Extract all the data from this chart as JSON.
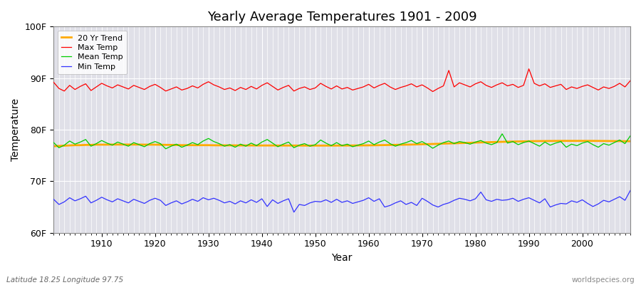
{
  "title": "Yearly Average Temperatures 1901 - 2009",
  "xlabel": "Year",
  "ylabel": "Temperature",
  "footnote_left": "Latitude 18.25 Longitude 97.75",
  "footnote_right": "worldspecies.org",
  "years_start": 1901,
  "years_end": 2009,
  "yticks": [
    60,
    70,
    80,
    90,
    100
  ],
  "ytick_labels": [
    "60F",
    "70F",
    "80F",
    "90F",
    "100F"
  ],
  "xticks": [
    1910,
    1920,
    1930,
    1940,
    1950,
    1960,
    1970,
    1980,
    1990,
    2000
  ],
  "xlim": [
    1901,
    2009
  ],
  "ylim": [
    60,
    100
  ],
  "fig_color": "#ffffff",
  "plot_bg_color": "#e0e0e8",
  "grid_color": "#ffffff",
  "max_temp_color": "#ff0000",
  "mean_temp_color": "#00cc00",
  "min_temp_color": "#3333ff",
  "trend_color": "#ffaa00",
  "legend_labels": [
    "Max Temp",
    "Mean Temp",
    "Min Temp",
    "20 Yr Trend"
  ],
  "max_temps": [
    89.2,
    88.0,
    87.5,
    88.6,
    87.8,
    88.4,
    88.9,
    87.6,
    88.3,
    89.0,
    88.5,
    88.1,
    88.7,
    88.3,
    87.9,
    88.6,
    88.2,
    87.8,
    88.4,
    88.8,
    88.2,
    87.5,
    87.9,
    88.3,
    87.7,
    88.0,
    88.5,
    88.1,
    88.8,
    89.3,
    88.7,
    88.3,
    87.8,
    88.1,
    87.6,
    88.2,
    87.8,
    88.4,
    87.9,
    88.6,
    89.1,
    88.4,
    87.7,
    88.2,
    88.6,
    87.5,
    88.0,
    88.3,
    87.8,
    88.1,
    89.0,
    88.4,
    87.9,
    88.5,
    87.9,
    88.2,
    87.7,
    88.0,
    88.3,
    88.8,
    88.1,
    88.6,
    89.0,
    88.3,
    87.8,
    88.2,
    88.5,
    88.9,
    88.3,
    88.7,
    88.1,
    87.4,
    88.0,
    88.5,
    91.5,
    88.3,
    89.1,
    88.7,
    88.3,
    88.9,
    89.3,
    88.6,
    88.2,
    88.7,
    89.1,
    88.5,
    88.8,
    88.2,
    88.6,
    91.8,
    89.0,
    88.5,
    88.9,
    88.2,
    88.5,
    88.8,
    87.8,
    88.3,
    88.0,
    88.4,
    88.7,
    88.2,
    87.7,
    88.3,
    88.0,
    88.4,
    89.0,
    88.3,
    89.5
  ],
  "mean_temps": [
    77.5,
    76.5,
    77.0,
    77.8,
    77.2,
    77.6,
    78.1,
    76.8,
    77.3,
    77.9,
    77.4,
    77.0,
    77.6,
    77.2,
    76.8,
    77.5,
    77.1,
    76.7,
    77.3,
    77.7,
    77.3,
    76.3,
    76.8,
    77.2,
    76.6,
    77.0,
    77.5,
    77.1,
    77.8,
    78.3,
    77.7,
    77.3,
    76.8,
    77.1,
    76.6,
    77.2,
    76.8,
    77.4,
    76.9,
    77.6,
    78.1,
    77.4,
    76.7,
    77.2,
    77.6,
    76.5,
    77.0,
    77.3,
    76.8,
    77.1,
    78.0,
    77.4,
    76.9,
    77.5,
    76.9,
    77.2,
    76.7,
    77.0,
    77.3,
    77.8,
    77.1,
    77.6,
    78.0,
    77.3,
    76.8,
    77.2,
    77.5,
    77.9,
    77.3,
    77.7,
    77.1,
    76.4,
    77.0,
    77.5,
    77.8,
    77.3,
    77.7,
    77.5,
    77.2,
    77.6,
    77.9,
    77.4,
    77.1,
    77.5,
    79.2,
    77.4,
    77.7,
    77.1,
    77.5,
    77.8,
    77.3,
    76.8,
    77.6,
    77.0,
    77.4,
    77.7,
    76.6,
    77.2,
    76.9,
    77.4,
    77.7,
    77.1,
    76.6,
    77.3,
    77.0,
    77.5,
    78.0,
    77.3,
    78.8
  ],
  "trend_temps": [
    76.8,
    76.85,
    76.9,
    76.95,
    77.0,
    77.0,
    77.05,
    77.05,
    77.1,
    77.1,
    77.1,
    77.12,
    77.12,
    77.12,
    77.12,
    77.12,
    77.12,
    77.1,
    77.1,
    77.1,
    77.08,
    77.06,
    77.05,
    77.03,
    77.0,
    77.0,
    77.0,
    77.0,
    77.0,
    77.0,
    76.98,
    76.97,
    76.97,
    76.96,
    76.96,
    76.95,
    76.95,
    76.95,
    76.94,
    76.94,
    76.94,
    76.94,
    76.93,
    76.93,
    76.93,
    76.93,
    76.92,
    76.92,
    76.92,
    76.92,
    76.92,
    76.92,
    76.92,
    76.92,
    76.93,
    76.93,
    76.94,
    76.95,
    76.96,
    76.97,
    76.98,
    77.0,
    77.02,
    77.04,
    77.06,
    77.08,
    77.1,
    77.12,
    77.15,
    77.18,
    77.2,
    77.23,
    77.26,
    77.3,
    77.33,
    77.36,
    77.4,
    77.43,
    77.46,
    77.5,
    77.53,
    77.56,
    77.59,
    77.62,
    77.65,
    77.68,
    77.7,
    77.72,
    77.74,
    77.76,
    77.78,
    77.79,
    77.8,
    77.81,
    77.82,
    77.83,
    77.83,
    77.83,
    77.83,
    77.83,
    77.83,
    77.83,
    77.82,
    77.81,
    77.8,
    77.79,
    77.78,
    77.77,
    77.76
  ],
  "min_temps": [
    66.5,
    65.5,
    66.0,
    66.8,
    66.2,
    66.6,
    67.1,
    65.8,
    66.3,
    66.9,
    66.4,
    66.0,
    66.6,
    66.2,
    65.8,
    66.5,
    66.1,
    65.7,
    66.3,
    66.7,
    66.3,
    65.3,
    65.8,
    66.2,
    65.6,
    66.0,
    66.5,
    66.1,
    66.8,
    66.4,
    66.7,
    66.3,
    65.8,
    66.1,
    65.6,
    66.2,
    65.8,
    66.4,
    65.9,
    66.6,
    65.1,
    66.4,
    65.7,
    66.2,
    66.6,
    64.0,
    65.5,
    65.3,
    65.8,
    66.1,
    66.0,
    66.4,
    65.9,
    66.5,
    65.9,
    66.2,
    65.7,
    66.0,
    66.3,
    66.8,
    66.1,
    66.6,
    65.0,
    65.3,
    65.8,
    66.2,
    65.5,
    65.9,
    65.3,
    66.7,
    66.1,
    65.4,
    65.0,
    65.5,
    65.8,
    66.3,
    66.7,
    66.5,
    66.2,
    66.6,
    67.9,
    66.4,
    66.1,
    66.5,
    66.3,
    66.4,
    66.7,
    66.1,
    66.5,
    66.8,
    66.3,
    65.8,
    66.6,
    65.0,
    65.4,
    65.7,
    65.6,
    66.2,
    65.9,
    66.4,
    65.7,
    65.1,
    65.6,
    66.3,
    66.0,
    66.5,
    67.0,
    66.3,
    68.2
  ]
}
